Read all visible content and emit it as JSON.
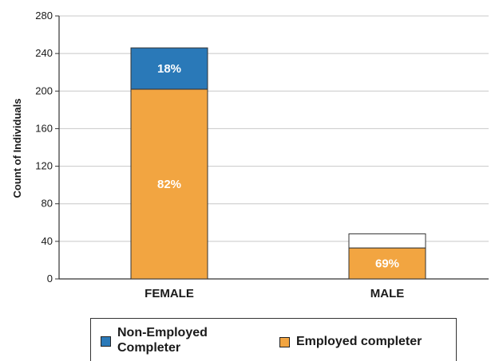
{
  "chart_data": {
    "type": "bar",
    "stacked": true,
    "categories": [
      "FEMALE",
      "MALE"
    ],
    "series": [
      {
        "name": "Employed completer",
        "color": "#F2A541",
        "values": [
          202,
          33
        ],
        "labels": [
          "82%",
          "69%"
        ]
      },
      {
        "name": "Non-Employed Completer",
        "color": "#2A79B8",
        "values": [
          44,
          0
        ],
        "labels": [
          "18%",
          ""
        ]
      }
    ],
    "unfilled_remainder": [
      0,
      15
    ],
    "ylabel": "Count of Individuals",
    "xlabel": "",
    "ylim": [
      0,
      280
    ],
    "yticks": [
      0,
      40,
      80,
      120,
      160,
      200,
      240,
      280
    ],
    "grid": true,
    "legend_position": "bottom"
  }
}
